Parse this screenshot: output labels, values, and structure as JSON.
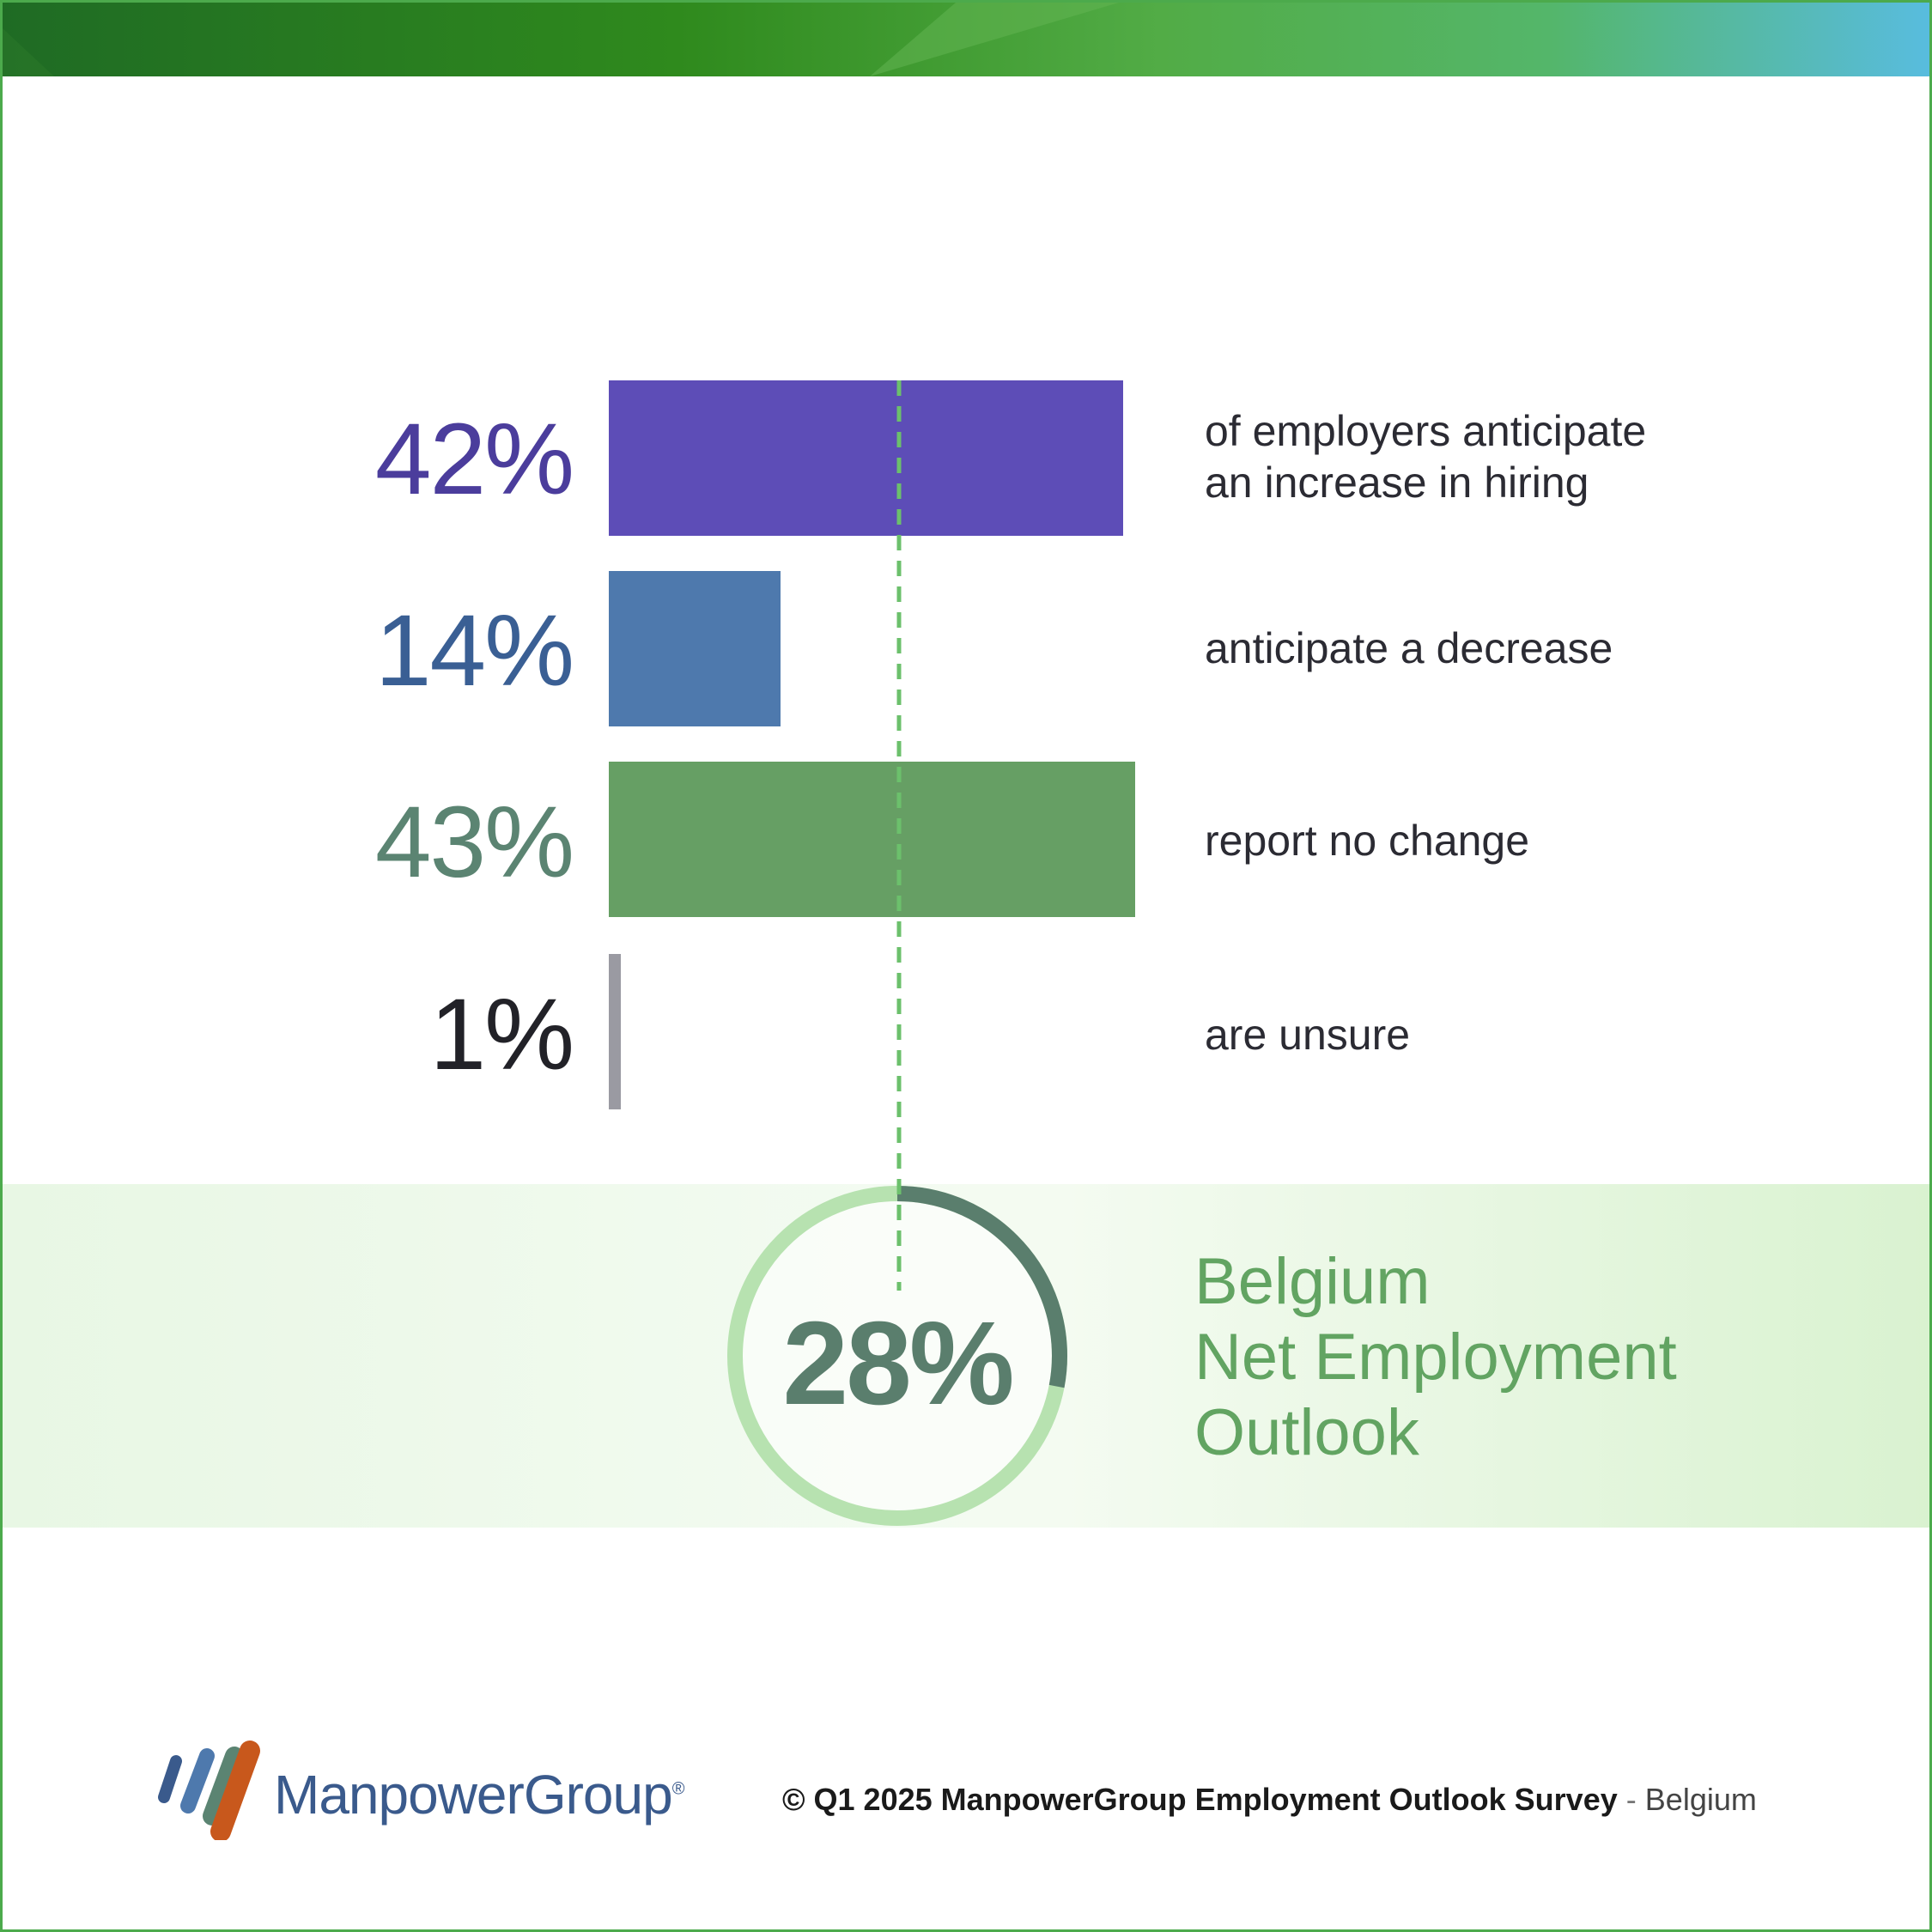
{
  "chart_data": {
    "type": "bar",
    "orientation": "horizontal",
    "rows": [
      {
        "value": 42,
        "value_label": "42%",
        "label_lines": [
          "of employers anticipate",
          "an increase in hiring"
        ],
        "color": "#5d4db7",
        "text_color": "#4b3d9c"
      },
      {
        "value": 14,
        "value_label": "14%",
        "label_lines": [
          "anticipate a decrease"
        ],
        "color": "#4e79ad",
        "text_color": "#3a5f94"
      },
      {
        "value": 43,
        "value_label": "43%",
        "label_lines": [
          "report no change"
        ],
        "color": "#669f64",
        "text_color": "#5b8472"
      },
      {
        "value": 1,
        "value_label": "1%",
        "label_lines": [
          "are unsure"
        ],
        "color": "#9a9aa2",
        "text_color": "#222228"
      }
    ],
    "net_employment_outlook": {
      "value": 28,
      "value_label": "28%",
      "title_lines": [
        "Belgium",
        "Net Employment",
        "Outlook"
      ]
    }
  },
  "colors": {
    "accent_green": "#4caa4c",
    "gauge_dark": "#5a7e6d",
    "gauge_light": "#b7e2b0",
    "dashed_line": "#6cc06c",
    "logo_blue": "#3a5a8c"
  },
  "brand": {
    "name": "ManpowerGroup",
    "registered": "®"
  },
  "footer": {
    "copyright": "© Q1 2025 ManpowerGroup Employment Outlook Survey",
    "separator": "-",
    "country": "Belgium"
  }
}
